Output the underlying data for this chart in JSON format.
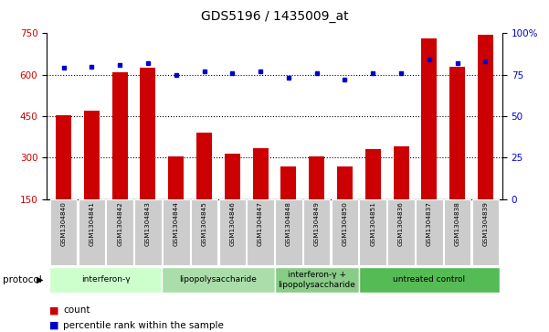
{
  "title": "GDS5196 / 1435009_at",
  "samples": [
    "GSM1304840",
    "GSM1304841",
    "GSM1304842",
    "GSM1304843",
    "GSM1304844",
    "GSM1304845",
    "GSM1304846",
    "GSM1304847",
    "GSM1304848",
    "GSM1304849",
    "GSM1304850",
    "GSM1304851",
    "GSM1304836",
    "GSM1304837",
    "GSM1304838",
    "GSM1304839"
  ],
  "counts": [
    455,
    470,
    610,
    625,
    305,
    390,
    315,
    335,
    268,
    305,
    268,
    330,
    340,
    730,
    630,
    745
  ],
  "percentile_ranks": [
    79,
    80,
    81,
    82,
    75,
    77,
    76,
    77,
    73,
    76,
    72,
    76,
    76,
    84,
    82,
    83
  ],
  "ylim_left": [
    150,
    750
  ],
  "ylim_right": [
    0,
    100
  ],
  "yticks_left": [
    150,
    300,
    450,
    600,
    750
  ],
  "yticks_right": [
    0,
    25,
    50,
    75,
    100
  ],
  "bar_color": "#cc0000",
  "dot_color": "#0000cc",
  "protocol_groups": [
    {
      "label": "interferon-γ",
      "start": 0,
      "end": 3,
      "color": "#ccffcc"
    },
    {
      "label": "lipopolysaccharide",
      "start": 4,
      "end": 7,
      "color": "#aaddaa"
    },
    {
      "label": "interferon-γ +\nlipopolysaccharide",
      "start": 8,
      "end": 10,
      "color": "#88cc88"
    },
    {
      "label": "untreated control",
      "start": 11,
      "end": 15,
      "color": "#55bb55"
    }
  ],
  "tick_label_color_left": "#cc0000",
  "tick_label_color_right": "#0000cc",
  "sample_box_color": "#cccccc",
  "grid_dotted_vals": [
    300,
    450,
    600
  ],
  "figsize": [
    6.01,
    3.63
  ],
  "dpi": 100
}
